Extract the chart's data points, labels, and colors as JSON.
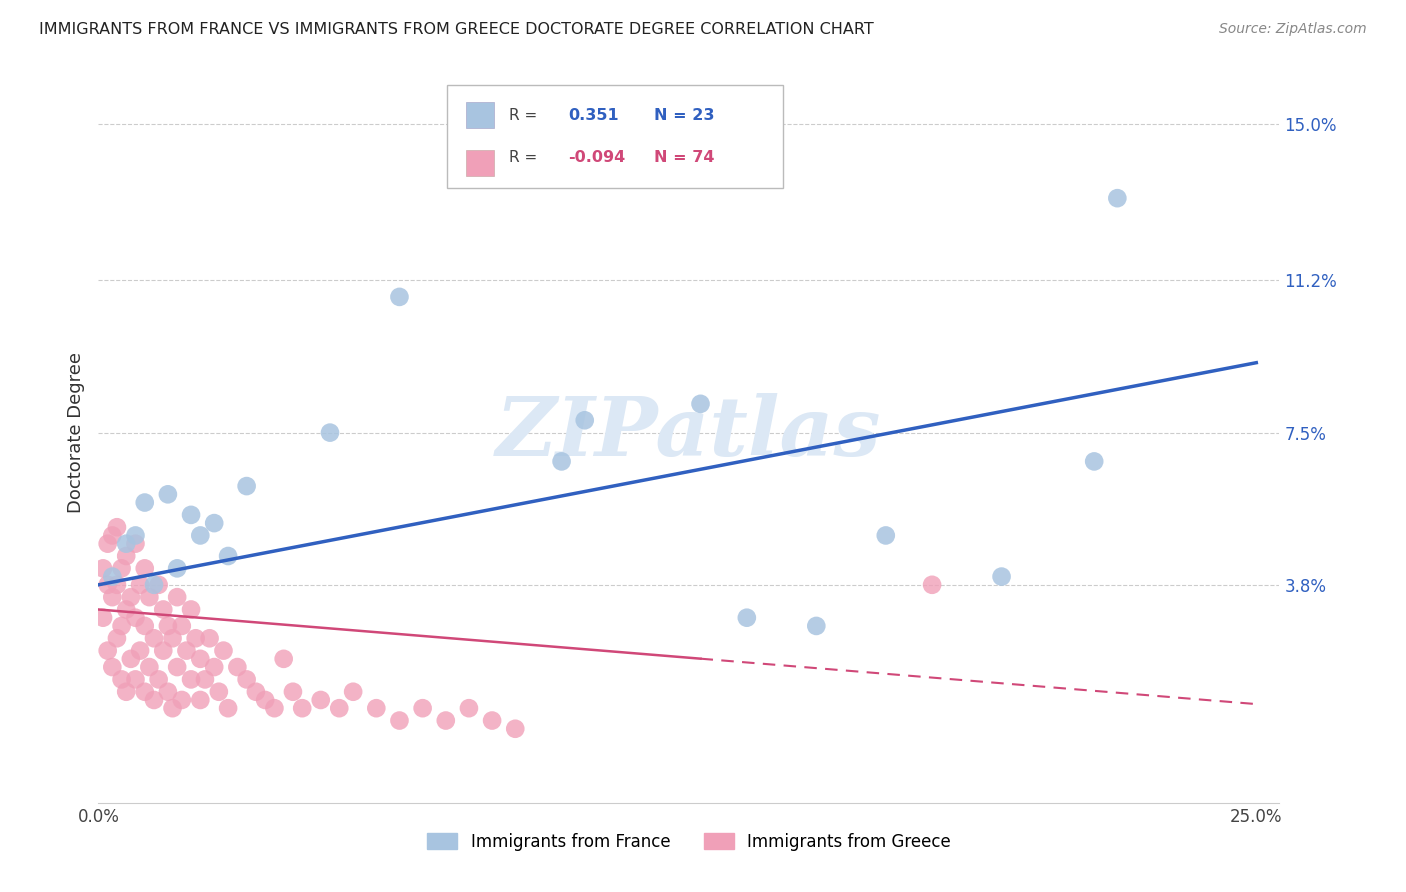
{
  "title": "IMMIGRANTS FROM FRANCE VS IMMIGRANTS FROM GREECE DOCTORATE DEGREE CORRELATION CHART",
  "source": "Source: ZipAtlas.com",
  "ylabel": "Doctorate Degree",
  "xlim": [
    0.0,
    0.255
  ],
  "ylim": [
    -0.015,
    0.165
  ],
  "yticks": [
    0.0,
    0.038,
    0.075,
    0.112,
    0.15
  ],
  "ytick_labels": [
    "",
    "3.8%",
    "7.5%",
    "11.2%",
    "15.0%"
  ],
  "xticks": [
    0.0,
    0.05,
    0.1,
    0.15,
    0.2,
    0.25
  ],
  "xtick_labels": [
    "0.0%",
    "",
    "",
    "",
    "",
    "25.0%"
  ],
  "france_color": "#a8c4e0",
  "greece_color": "#f0a0b8",
  "france_line_color": "#3060c0",
  "greece_line_color": "#d04878",
  "watermark_color": "#dce8f5",
  "france_x": [
    0.003,
    0.006,
    0.008,
    0.01,
    0.012,
    0.015,
    0.017,
    0.02,
    0.022,
    0.025,
    0.028,
    0.032,
    0.05,
    0.065,
    0.1,
    0.105,
    0.13,
    0.14,
    0.155,
    0.17,
    0.195,
    0.215,
    0.22
  ],
  "france_y": [
    0.04,
    0.048,
    0.05,
    0.058,
    0.038,
    0.06,
    0.042,
    0.055,
    0.05,
    0.053,
    0.045,
    0.062,
    0.075,
    0.108,
    0.068,
    0.078,
    0.082,
    0.03,
    0.028,
    0.05,
    0.04,
    0.068,
    0.132
  ],
  "greece_x": [
    0.001,
    0.001,
    0.002,
    0.002,
    0.002,
    0.003,
    0.003,
    0.003,
    0.004,
    0.004,
    0.004,
    0.005,
    0.005,
    0.005,
    0.006,
    0.006,
    0.006,
    0.007,
    0.007,
    0.008,
    0.008,
    0.008,
    0.009,
    0.009,
    0.01,
    0.01,
    0.01,
    0.011,
    0.011,
    0.012,
    0.012,
    0.013,
    0.013,
    0.014,
    0.014,
    0.015,
    0.015,
    0.016,
    0.016,
    0.017,
    0.017,
    0.018,
    0.018,
    0.019,
    0.02,
    0.02,
    0.021,
    0.022,
    0.022,
    0.023,
    0.024,
    0.025,
    0.026,
    0.027,
    0.028,
    0.03,
    0.032,
    0.034,
    0.036,
    0.038,
    0.04,
    0.042,
    0.044,
    0.048,
    0.052,
    0.055,
    0.06,
    0.065,
    0.07,
    0.075,
    0.08,
    0.085,
    0.09,
    0.18
  ],
  "greece_y": [
    0.03,
    0.042,
    0.022,
    0.038,
    0.048,
    0.018,
    0.035,
    0.05,
    0.025,
    0.038,
    0.052,
    0.015,
    0.028,
    0.042,
    0.012,
    0.032,
    0.045,
    0.02,
    0.035,
    0.015,
    0.03,
    0.048,
    0.022,
    0.038,
    0.012,
    0.028,
    0.042,
    0.018,
    0.035,
    0.01,
    0.025,
    0.015,
    0.038,
    0.022,
    0.032,
    0.012,
    0.028,
    0.008,
    0.025,
    0.018,
    0.035,
    0.01,
    0.028,
    0.022,
    0.015,
    0.032,
    0.025,
    0.01,
    0.02,
    0.015,
    0.025,
    0.018,
    0.012,
    0.022,
    0.008,
    0.018,
    0.015,
    0.012,
    0.01,
    0.008,
    0.02,
    0.012,
    0.008,
    0.01,
    0.008,
    0.012,
    0.008,
    0.005,
    0.008,
    0.005,
    0.008,
    0.005,
    0.003,
    0.038
  ],
  "france_line_x0": 0.0,
  "france_line_x1": 0.25,
  "france_line_y0": 0.038,
  "france_line_y1": 0.092,
  "greece_line_x0": 0.0,
  "greece_line_x1": 0.25,
  "greece_line_y0": 0.032,
  "greece_line_y1": 0.009
}
